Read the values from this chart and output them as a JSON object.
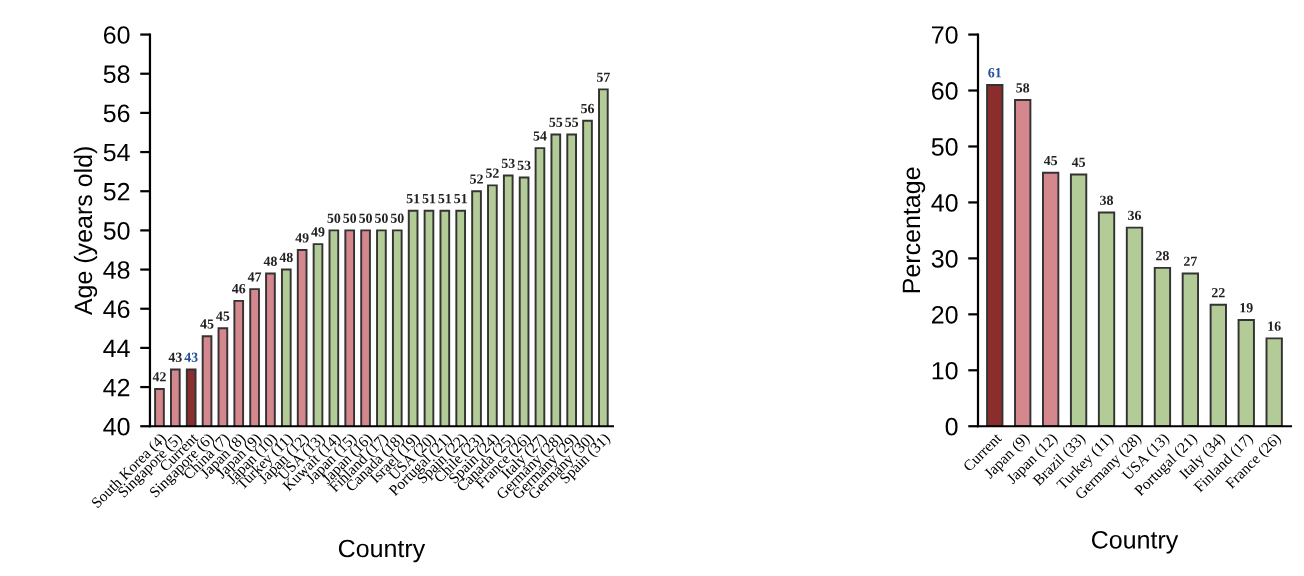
{
  "chart_data": [
    {
      "type": "bar",
      "xlabel": "Country",
      "ylabel": "Age (years old)",
      "ylim": [
        40,
        60
      ],
      "yticks": [
        40,
        42,
        44,
        46,
        48,
        50,
        52,
        54,
        56,
        58,
        60
      ],
      "grid": false,
      "categories": [
        "South Korea (4)",
        "Singapore (5)",
        "Current",
        "Singapore (6)",
        "China (7)",
        "Japan (8)",
        "Japan (9)",
        "Japan (10)",
        "Turkey (11)",
        "Japan (12)",
        "USA (13)",
        "Kuwait (14)",
        "Japan (15)",
        "Japan (16)",
        "Finland (17)",
        "Canada (18)",
        "Israel (19)",
        "USA (20)",
        "Portugal (21)",
        "Spain (22)",
        "Chile (23)",
        "Spain (24)",
        "Canada (25)",
        "France (26)",
        "Italy (27)",
        "Germany (28)",
        "Germany (29)",
        "Germany (30)",
        "Spain (31)"
      ],
      "values": [
        41.9,
        42.9,
        42.9,
        44.6,
        45.0,
        46.4,
        47.0,
        47.8,
        48.0,
        49.0,
        49.3,
        50.0,
        50.0,
        50.0,
        50.0,
        50.0,
        51.0,
        51.0,
        51.0,
        51.0,
        52.0,
        52.3,
        52.8,
        52.7,
        54.2,
        54.9,
        54.9,
        55.6,
        57.2
      ],
      "value_labels": [
        "42",
        "43",
        "43",
        "45",
        "45",
        "46",
        "47",
        "48",
        "48",
        "49",
        "49",
        "50",
        "50",
        "50",
        "50",
        "50",
        "51",
        "51",
        "51",
        "51",
        "52",
        "52",
        "53",
        "53",
        "54",
        "55",
        "55",
        "56",
        "57"
      ],
      "colors": [
        "#d4878d",
        "#d4878d",
        "#8b2d2d",
        "#d4878d",
        "#d4878d",
        "#d4878d",
        "#d4878d",
        "#d4878d",
        "#b3cc97",
        "#d4878d",
        "#b3cc97",
        "#b3cc97",
        "#d4878d",
        "#d4878d",
        "#b3cc97",
        "#b3cc97",
        "#b3cc97",
        "#b3cc97",
        "#b3cc97",
        "#b3cc97",
        "#b3cc97",
        "#b3cc97",
        "#b3cc97",
        "#b3cc97",
        "#b3cc97",
        "#b3cc97",
        "#b3cc97",
        "#b3cc97",
        "#b3cc97"
      ]
    },
    {
      "type": "bar",
      "xlabel": "Country",
      "ylabel": "Percentage",
      "ylim": [
        0,
        70
      ],
      "yticks": [
        0,
        10,
        20,
        30,
        40,
        50,
        60,
        70
      ],
      "grid": false,
      "categories": [
        "Current",
        "Japan (9)",
        "Japan (12)",
        "Brazil (33)",
        "Turkey (11)",
        "Germany (28)",
        "USA (13)",
        "Portugal (21)",
        "Italy (34)",
        "Finland (17)",
        "France (26)"
      ],
      "values": [
        61.0,
        58.3,
        45.3,
        45.0,
        38.2,
        35.5,
        28.3,
        27.3,
        21.7,
        19.0,
        15.7
      ],
      "value_labels": [
        "61",
        "58",
        "45",
        "45",
        "38",
        "36",
        "28",
        "27",
        "22",
        "19",
        "16"
      ],
      "colors": [
        "#8b2d2d",
        "#d4878d",
        "#d4878d",
        "#b3cc97",
        "#b3cc97",
        "#b3cc97",
        "#b3cc97",
        "#b3cc97",
        "#b3cc97",
        "#b3cc97",
        "#b3cc97"
      ]
    }
  ]
}
